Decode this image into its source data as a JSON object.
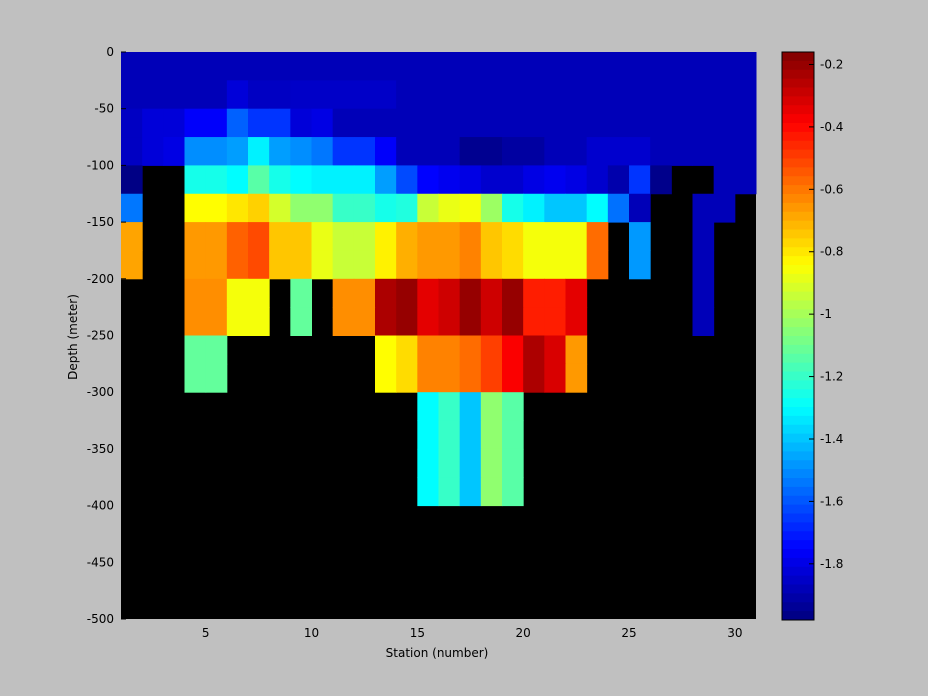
{
  "chart_data": {
    "type": "heatmap",
    "xlabel": "Station (number)",
    "ylabel": "Depth (meter)",
    "xlim": [
      1,
      31
    ],
    "ylim": [
      -500,
      0
    ],
    "x_ticks": [
      5,
      10,
      15,
      20,
      25,
      30
    ],
    "y_ticks": [
      0,
      -50,
      -100,
      -150,
      -200,
      -250,
      -300,
      -350,
      -400,
      -450,
      -500
    ],
    "colorbar": {
      "range": [
        -1.98,
        -0.16
      ],
      "ticks": [
        -0.2,
        -0.4,
        -0.6,
        -0.8,
        -1,
        -1.2,
        -1.4,
        -1.6,
        -1.8
      ],
      "colormap": "jet"
    },
    "missing_color": "#000000",
    "stations": [
      1,
      2,
      3,
      4,
      5,
      6,
      7,
      8,
      9,
      10,
      11,
      12,
      13,
      14,
      15,
      16,
      17,
      18,
      19,
      20,
      21,
      22,
      23,
      24,
      25,
      26,
      27,
      28,
      29,
      30
    ],
    "depths": [
      -25,
      -50,
      -75,
      -100,
      -125,
      -150,
      -175,
      -200,
      -225,
      -250,
      -275,
      -300,
      -325,
      -350,
      -375,
      -400,
      -425,
      -450,
      -475
    ],
    "values": [
      [
        -1.88,
        -1.88,
        -1.88,
        -1.88,
        -1.88,
        -1.88,
        -1.88,
        -1.88,
        -1.88,
        -1.88,
        -1.88,
        -1.88,
        -1.88,
        -1.88,
        -1.88,
        -1.88,
        -1.88,
        -1.88,
        -1.88,
        -1.88,
        -1.88,
        -1.88,
        -1.88,
        -1.88,
        -1.88,
        -1.88,
        -1.88,
        -1.88,
        -1.88,
        -1.88
      ],
      [
        -1.88,
        -1.88,
        -1.88,
        -1.88,
        -1.88,
        -1.82,
        -1.86,
        -1.86,
        -1.85,
        -1.85,
        -1.85,
        -1.85,
        -1.85,
        -1.88,
        -1.88,
        -1.88,
        -1.88,
        -1.88,
        -1.88,
        -1.88,
        -1.88,
        -1.88,
        -1.88,
        -1.88,
        -1.88,
        -1.88,
        -1.88,
        -1.88,
        -1.88,
        -1.88
      ],
      [
        -1.86,
        -1.82,
        -1.82,
        -1.76,
        -1.76,
        -1.58,
        -1.66,
        -1.66,
        -1.82,
        -1.8,
        -1.88,
        -1.88,
        -1.88,
        -1.88,
        -1.88,
        -1.88,
        -1.88,
        -1.88,
        -1.88,
        -1.88,
        -1.88,
        -1.88,
        -1.88,
        -1.88,
        -1.88,
        -1.88,
        -1.88,
        -1.88,
        -1.88,
        -1.88
      ],
      [
        -1.86,
        -1.82,
        -1.8,
        -1.5,
        -1.5,
        -1.47,
        -1.32,
        -1.47,
        -1.5,
        -1.54,
        -1.66,
        -1.66,
        -1.76,
        -1.88,
        -1.88,
        -1.88,
        -1.95,
        -1.95,
        -1.92,
        -1.92,
        -1.88,
        -1.88,
        -1.84,
        -1.84,
        -1.84,
        -1.88,
        -1.88,
        -1.88,
        -1.88,
        -1.88
      ],
      [
        -1.97,
        null,
        null,
        -1.26,
        -1.26,
        -1.3,
        -1.14,
        -1.26,
        -1.3,
        -1.32,
        -1.32,
        -1.32,
        -1.47,
        -1.62,
        -1.75,
        -1.78,
        -1.8,
        -1.84,
        -1.84,
        -1.8,
        -1.78,
        -1.8,
        -1.84,
        -1.9,
        -1.66,
        -1.96,
        null,
        null,
        -1.88,
        -1.88
      ],
      [
        -1.54,
        null,
        null,
        -0.84,
        -0.84,
        -0.8,
        -0.76,
        -0.92,
        -1.04,
        -1.04,
        -1.2,
        -1.2,
        -1.26,
        -1.24,
        -0.94,
        -0.88,
        -0.86,
        -1.02,
        -1.26,
        -1.32,
        -1.4,
        -1.4,
        -1.3,
        -1.55,
        -1.88,
        null,
        null,
        -1.88,
        -1.88,
        null
      ],
      [
        -0.68,
        null,
        null,
        -0.66,
        -0.66,
        -0.56,
        -0.52,
        -0.74,
        -0.74,
        -0.88,
        -0.94,
        -0.94,
        -0.82,
        -0.7,
        -0.66,
        -0.66,
        -0.62,
        -0.74,
        -0.78,
        -0.86,
        -0.86,
        -0.86,
        -0.58,
        null,
        -1.48,
        null,
        null,
        -1.88,
        null,
        null
      ],
      [
        -0.68,
        null,
        null,
        -0.66,
        -0.66,
        -0.56,
        -0.52,
        -0.74,
        -0.74,
        -0.88,
        -0.94,
        -0.94,
        -0.82,
        -0.7,
        -0.66,
        -0.66,
        -0.62,
        -0.74,
        -0.78,
        -0.86,
        -0.86,
        -0.86,
        -0.58,
        null,
        -1.48,
        null,
        null,
        -1.88,
        null,
        null
      ],
      [
        null,
        null,
        null,
        -0.64,
        -0.64,
        -0.86,
        -0.86,
        null,
        -1.12,
        null,
        -0.64,
        -0.64,
        -0.24,
        -0.2,
        -0.34,
        -0.3,
        -0.2,
        -0.3,
        -0.2,
        -0.44,
        -0.44,
        -0.34,
        null,
        null,
        null,
        null,
        null,
        -1.88,
        null,
        null
      ],
      [
        null,
        null,
        null,
        -0.64,
        -0.64,
        -0.86,
        -0.86,
        null,
        -1.12,
        null,
        -0.64,
        -0.64,
        -0.24,
        -0.2,
        -0.34,
        -0.3,
        -0.2,
        -0.3,
        -0.2,
        -0.44,
        -0.44,
        -0.34,
        null,
        null,
        null,
        null,
        null,
        -1.88,
        null,
        null
      ],
      [
        null,
        null,
        null,
        -1.12,
        -1.12,
        null,
        null,
        null,
        null,
        null,
        null,
        null,
        -0.84,
        -0.78,
        -0.62,
        -0.62,
        -0.58,
        -0.5,
        -0.38,
        -0.24,
        -0.32,
        -0.66,
        null,
        null,
        null,
        null,
        null,
        null,
        null,
        null
      ],
      [
        null,
        null,
        null,
        -1.12,
        -1.12,
        null,
        null,
        null,
        null,
        null,
        null,
        null,
        -0.84,
        -0.78,
        -0.62,
        -0.62,
        -0.58,
        -0.5,
        -0.38,
        -0.24,
        -0.32,
        -0.66,
        null,
        null,
        null,
        null,
        null,
        null,
        null,
        null
      ],
      [
        null,
        null,
        null,
        null,
        null,
        null,
        null,
        null,
        null,
        null,
        null,
        null,
        null,
        null,
        -1.3,
        -1.2,
        -1.4,
        -1.04,
        -1.14,
        null,
        null,
        null,
        null,
        null,
        null,
        null,
        null,
        null,
        null,
        null
      ],
      [
        null,
        null,
        null,
        null,
        null,
        null,
        null,
        null,
        null,
        null,
        null,
        null,
        null,
        null,
        -1.3,
        -1.2,
        -1.4,
        -1.04,
        -1.14,
        null,
        null,
        null,
        null,
        null,
        null,
        null,
        null,
        null,
        null,
        null
      ],
      [
        null,
        null,
        null,
        null,
        null,
        null,
        null,
        null,
        null,
        null,
        null,
        null,
        null,
        null,
        -1.3,
        -1.2,
        -1.4,
        -1.04,
        -1.14,
        null,
        null,
        null,
        null,
        null,
        null,
        null,
        null,
        null,
        null,
        null
      ],
      [
        null,
        null,
        null,
        null,
        null,
        null,
        null,
        null,
        null,
        null,
        null,
        null,
        null,
        null,
        -1.3,
        -1.2,
        -1.4,
        -1.04,
        -1.14,
        null,
        null,
        null,
        null,
        null,
        null,
        null,
        null,
        null,
        null,
        null
      ],
      [
        null,
        null,
        null,
        null,
        null,
        null,
        null,
        null,
        null,
        null,
        null,
        null,
        null,
        null,
        null,
        null,
        null,
        null,
        null,
        null,
        null,
        null,
        null,
        null,
        null,
        null,
        null,
        null,
        null,
        null
      ],
      [
        null,
        null,
        null,
        null,
        null,
        null,
        null,
        null,
        null,
        null,
        null,
        null,
        null,
        null,
        null,
        null,
        null,
        null,
        null,
        null,
        null,
        null,
        null,
        null,
        null,
        null,
        null,
        null,
        null,
        null
      ],
      [
        null,
        null,
        null,
        null,
        null,
        null,
        null,
        null,
        null,
        null,
        null,
        null,
        null,
        null,
        null,
        null,
        null,
        null,
        null,
        null,
        null,
        null,
        null,
        null,
        null,
        null,
        null,
        null,
        null,
        null
      ]
    ]
  }
}
